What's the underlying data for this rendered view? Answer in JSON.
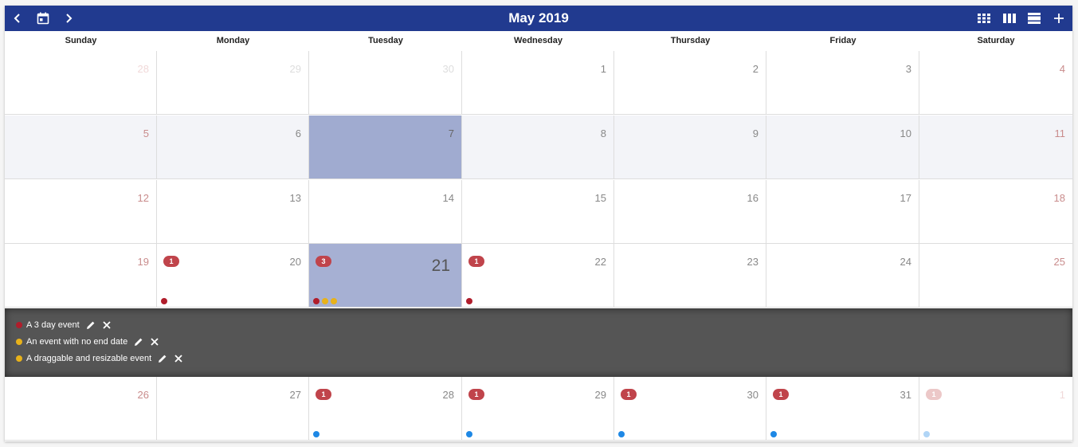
{
  "toolbar": {
    "title": "May 2019",
    "nav_icons": [
      "chevron-left-icon",
      "calendar-today-icon",
      "chevron-right-icon"
    ],
    "view_icons": [
      "month-view-icon",
      "week-view-icon",
      "day-view-icon",
      "add-icon"
    ]
  },
  "weekdays": [
    "Sunday",
    "Monday",
    "Tuesday",
    "Wednesday",
    "Thursday",
    "Friday",
    "Saturday"
  ],
  "colors": {
    "toolbar": "#213a8f",
    "selected_day": "#a0abd0",
    "today": "#a6b0d3",
    "highlight_row": "#f3f4f8",
    "badge": "#c0444b",
    "event_red": "#b01d2b",
    "event_yellow": "#e8b21a",
    "event_blue": "#1e88e5",
    "panel": "#555555"
  },
  "weeks": [
    {
      "days": [
        {
          "num": "28",
          "other": true
        },
        {
          "num": "29",
          "other": true
        },
        {
          "num": "30",
          "other": true
        },
        {
          "num": "1"
        },
        {
          "num": "2"
        },
        {
          "num": "3"
        },
        {
          "num": "4"
        }
      ]
    },
    {
      "highlight": true,
      "days": [
        {
          "num": "5"
        },
        {
          "num": "6"
        },
        {
          "num": "7",
          "selected": true
        },
        {
          "num": "8"
        },
        {
          "num": "9"
        },
        {
          "num": "10"
        },
        {
          "num": "11"
        }
      ]
    },
    {
      "days": [
        {
          "num": "12"
        },
        {
          "num": "13"
        },
        {
          "num": "14"
        },
        {
          "num": "15"
        },
        {
          "num": "16"
        },
        {
          "num": "17"
        },
        {
          "num": "18"
        }
      ]
    },
    {
      "days": [
        {
          "num": "19"
        },
        {
          "num": "20",
          "badge": "1",
          "dots": [
            "event_red"
          ]
        },
        {
          "num": "21",
          "badge": "3",
          "today": true,
          "dots": [
            "event_red",
            "event_yellow",
            "event_yellow"
          ]
        },
        {
          "num": "22",
          "badge": "1",
          "dots": [
            "event_red"
          ]
        },
        {
          "num": "23"
        },
        {
          "num": "24"
        },
        {
          "num": "25"
        }
      ]
    },
    {
      "days": [
        {
          "num": "26"
        },
        {
          "num": "27"
        },
        {
          "num": "28",
          "badge": "1",
          "dots": [
            "event_blue"
          ]
        },
        {
          "num": "29",
          "badge": "1",
          "dots": [
            "event_blue"
          ]
        },
        {
          "num": "30",
          "badge": "1",
          "dots": [
            "event_blue"
          ]
        },
        {
          "num": "31",
          "badge": "1",
          "dots": [
            "event_blue"
          ]
        },
        {
          "num": "1",
          "other": true,
          "badge": "1",
          "dots": [
            "event_blue"
          ]
        }
      ]
    }
  ],
  "events_panel": {
    "after_week": 3,
    "events": [
      {
        "title": "A 3 day event",
        "color": "event_red"
      },
      {
        "title": "An event with no end date",
        "color": "event_yellow"
      },
      {
        "title": "A draggable and resizable event",
        "color": "event_yellow"
      }
    ]
  }
}
